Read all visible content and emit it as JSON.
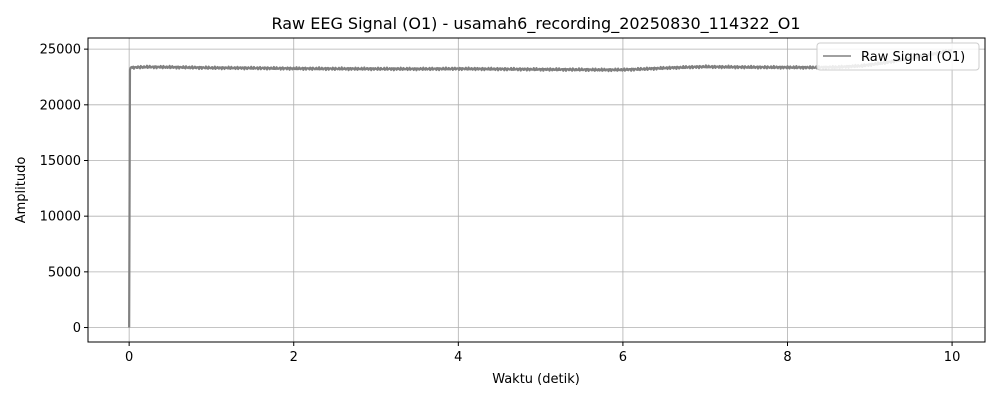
{
  "chart_data": {
    "type": "line",
    "title": "Raw EEG Signal (O1) - usamah6_recording_20250830_114322_O1",
    "xlabel": "Waktu (detik)",
    "ylabel": "Amplitudo",
    "xlim": [
      -0.5,
      10.4
    ],
    "ylim": [
      -1300,
      26000
    ],
    "xticks": [
      0,
      2,
      4,
      6,
      8,
      10
    ],
    "yticks": [
      0,
      5000,
      10000,
      15000,
      20000,
      25000
    ],
    "grid": true,
    "legend_position": "top-right",
    "series": [
      {
        "name": "Raw Signal (O1)",
        "color": "#808080",
        "x": [
          0,
          0.01,
          0.03,
          0.05,
          0.2,
          0.5,
          1.0,
          1.5,
          2.0,
          2.5,
          3.0,
          3.5,
          4.0,
          4.5,
          5.0,
          5.5,
          5.8,
          6.0,
          6.2,
          6.5,
          6.8,
          7.0,
          7.2,
          7.5,
          8.0,
          8.3,
          8.6,
          8.9,
          9.2,
          9.5,
          9.8,
          10.0
        ],
        "y": [
          0,
          23200,
          23400,
          23350,
          23400,
          23380,
          23320,
          23300,
          23260,
          23240,
          23230,
          23220,
          23240,
          23210,
          23180,
          23160,
          23140,
          23150,
          23200,
          23300,
          23380,
          23420,
          23400,
          23380,
          23360,
          23350,
          23380,
          23500,
          23800,
          24200,
          24600,
          24900
        ]
      }
    ]
  }
}
